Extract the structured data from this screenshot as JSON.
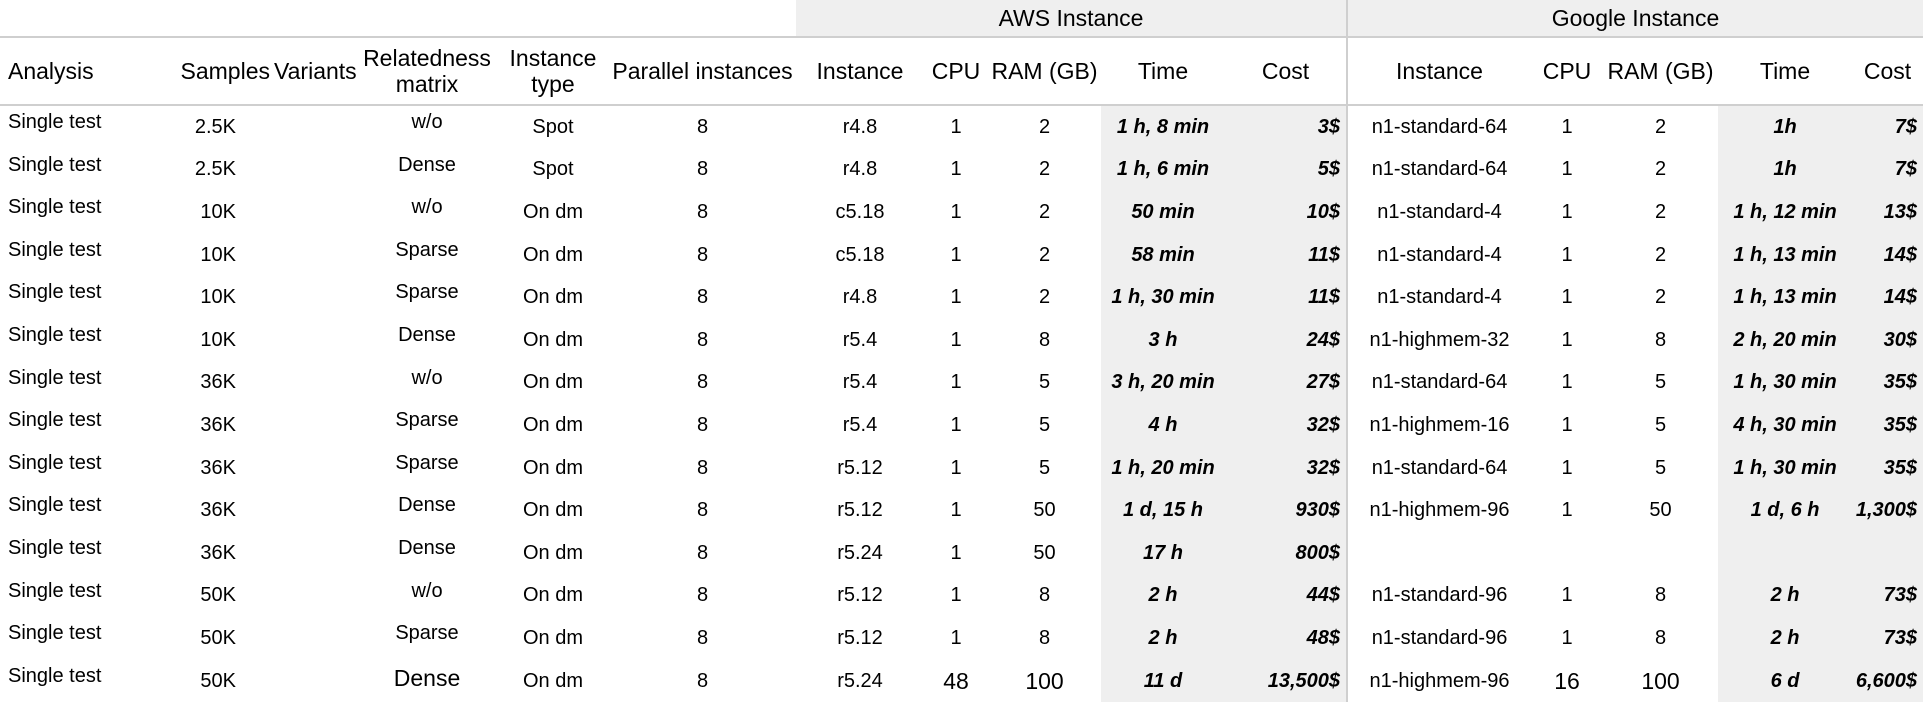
{
  "groups": {
    "aws": "AWS Instance",
    "google": "Google Instance"
  },
  "headers": {
    "analysis": "Analysis",
    "samples": "Samples",
    "variants": "Variants",
    "relatedness": "Relatedness matrix",
    "instance_type": "Instance type",
    "parallel": "Parallel instances",
    "aws_instance": "Instance",
    "aws_cpu": "CPU",
    "aws_ram": "RAM (GB)",
    "aws_time": "Time",
    "aws_cost": "Cost",
    "g_instance": "Instance",
    "g_cpu": "CPU",
    "g_ram": "RAM (GB)",
    "g_time": "Time",
    "g_cost": "Cost"
  },
  "rows": [
    {
      "analysis": "Single test",
      "samples": "2.5K",
      "variants": "",
      "relatedness": "w/o",
      "type": "Spot",
      "parallel": "8",
      "aws_instance": "r4.8",
      "aws_cpu": "1",
      "aws_ram": "2",
      "aws_time": "1 h, 8 min",
      "aws_cost": "3$",
      "g_instance": "n1-standard-64",
      "g_cpu": "1",
      "g_ram": "2",
      "g_time": "1h",
      "g_cost": "7$"
    },
    {
      "analysis": "Single test",
      "samples": "2.5K",
      "variants": "",
      "relatedness": "Dense",
      "type": "Spot",
      "parallel": "8",
      "aws_instance": "r4.8",
      "aws_cpu": "1",
      "aws_ram": "2",
      "aws_time": "1 h, 6 min",
      "aws_cost": "5$",
      "g_instance": "n1-standard-64",
      "g_cpu": "1",
      "g_ram": "2",
      "g_time": "1h",
      "g_cost": "7$"
    },
    {
      "analysis": "Single test",
      "samples": "10K",
      "variants": "",
      "relatedness": "w/o",
      "type": "On dm",
      "parallel": "8",
      "aws_instance": "c5.18",
      "aws_cpu": "1",
      "aws_ram": "2",
      "aws_time": "50 min",
      "aws_cost": "10$",
      "g_instance": "n1-standard-4",
      "g_cpu": "1",
      "g_ram": "2",
      "g_time": "1 h, 12 min",
      "g_cost": "13$"
    },
    {
      "analysis": "Single test",
      "samples": "10K",
      "variants": "",
      "relatedness": "Sparse",
      "type": "On dm",
      "parallel": "8",
      "aws_instance": "c5.18",
      "aws_cpu": "1",
      "aws_ram": "2",
      "aws_time": "58 min",
      "aws_cost": "11$",
      "g_instance": "n1-standard-4",
      "g_cpu": "1",
      "g_ram": "2",
      "g_time": "1 h, 13 min",
      "g_cost": "14$"
    },
    {
      "analysis": "Single test",
      "samples": "10K",
      "variants": "",
      "relatedness": "Sparse",
      "type": "On dm",
      "parallel": "8",
      "aws_instance": "r4.8",
      "aws_cpu": "1",
      "aws_ram": "2",
      "aws_time": "1 h, 30 min",
      "aws_cost": "11$",
      "g_instance": "n1-standard-4",
      "g_cpu": "1",
      "g_ram": "2",
      "g_time": "1 h, 13 min",
      "g_cost": "14$"
    },
    {
      "analysis": "Single test",
      "samples": "10K",
      "variants": "",
      "relatedness": "Dense",
      "type": "On dm",
      "parallel": "8",
      "aws_instance": "r5.4",
      "aws_cpu": "1",
      "aws_ram": "8",
      "aws_time": "3 h",
      "aws_cost": "24$",
      "g_instance": "n1-highmem-32",
      "g_cpu": "1",
      "g_ram": "8",
      "g_time": "2 h, 20 min",
      "g_cost": "30$"
    },
    {
      "analysis": "Single test",
      "samples": "36K",
      "variants": "",
      "relatedness": "w/o",
      "type": "On dm",
      "parallel": "8",
      "aws_instance": "r5.4",
      "aws_cpu": "1",
      "aws_ram": "5",
      "aws_time": "3 h, 20 min",
      "aws_cost": "27$",
      "g_instance": "n1-standard-64",
      "g_cpu": "1",
      "g_ram": "5",
      "g_time": "1 h, 30 min",
      "g_cost": "35$"
    },
    {
      "analysis": "Single test",
      "samples": "36K",
      "variants": "",
      "relatedness": "Sparse",
      "type": "On dm",
      "parallel": "8",
      "aws_instance": "r5.4",
      "aws_cpu": "1",
      "aws_ram": "5",
      "aws_time": "4 h",
      "aws_cost": "32$",
      "g_instance": "n1-highmem-16",
      "g_cpu": "1",
      "g_ram": "5",
      "g_time": "4 h, 30 min",
      "g_cost": "35$"
    },
    {
      "analysis": "Single test",
      "samples": "36K",
      "variants": "",
      "relatedness": "Sparse",
      "type": "On dm",
      "parallel": "8",
      "aws_instance": "r5.12",
      "aws_cpu": "1",
      "aws_ram": "5",
      "aws_time": "1 h, 20 min",
      "aws_cost": "32$",
      "g_instance": "n1-standard-64",
      "g_cpu": "1",
      "g_ram": "5",
      "g_time": "1 h, 30 min",
      "g_cost": "35$"
    },
    {
      "analysis": "Single test",
      "samples": "36K",
      "variants": "",
      "relatedness": "Dense",
      "type": "On dm",
      "parallel": "8",
      "aws_instance": "r5.12",
      "aws_cpu": "1",
      "aws_ram": "50",
      "aws_time": "1 d, 15 h",
      "aws_cost": "930$",
      "g_instance": "n1-highmem-96",
      "g_cpu": "1",
      "g_ram": "50",
      "g_time": "1 d, 6 h",
      "g_cost": "1,300$"
    },
    {
      "analysis": "Single test",
      "samples": "36K",
      "variants": "",
      "relatedness": "Dense",
      "type": "On dm",
      "parallel": "8",
      "aws_instance": "r5.24",
      "aws_cpu": "1",
      "aws_ram": "50",
      "aws_time": "17 h",
      "aws_cost": "800$",
      "g_instance": "",
      "g_cpu": "",
      "g_ram": "",
      "g_time": "",
      "g_cost": ""
    },
    {
      "analysis": "Single test",
      "samples": "50K",
      "variants": "",
      "relatedness": "w/o",
      "type": "On dm",
      "parallel": "8",
      "aws_instance": "r5.12",
      "aws_cpu": "1",
      "aws_ram": "8",
      "aws_time": "2 h",
      "aws_cost": "44$",
      "g_instance": "n1-standard-96",
      "g_cpu": "1",
      "g_ram": "8",
      "g_time": "2 h",
      "g_cost": "73$"
    },
    {
      "analysis": "Single test",
      "samples": "50K",
      "variants": "",
      "relatedness": "Sparse",
      "type": "On dm",
      "parallel": "8",
      "aws_instance": "r5.12",
      "aws_cpu": "1",
      "aws_ram": "8",
      "aws_time": "2 h",
      "aws_cost": "48$",
      "g_instance": "n1-standard-96",
      "g_cpu": "1",
      "g_ram": "8",
      "g_time": "2 h",
      "g_cost": "73$"
    },
    {
      "analysis": "Single test",
      "samples": "50K",
      "variants": "",
      "relatedness": "Dense",
      "type": "On dm",
      "parallel": "8",
      "aws_instance": "r5.24",
      "aws_cpu": "48",
      "aws_ram": "100",
      "aws_time": "11 d",
      "aws_cost": "13,500$",
      "g_instance": "n1-highmem-96",
      "g_cpu": "16",
      "g_ram": "100",
      "g_time": "6 d",
      "g_cost": "6,600$"
    }
  ]
}
